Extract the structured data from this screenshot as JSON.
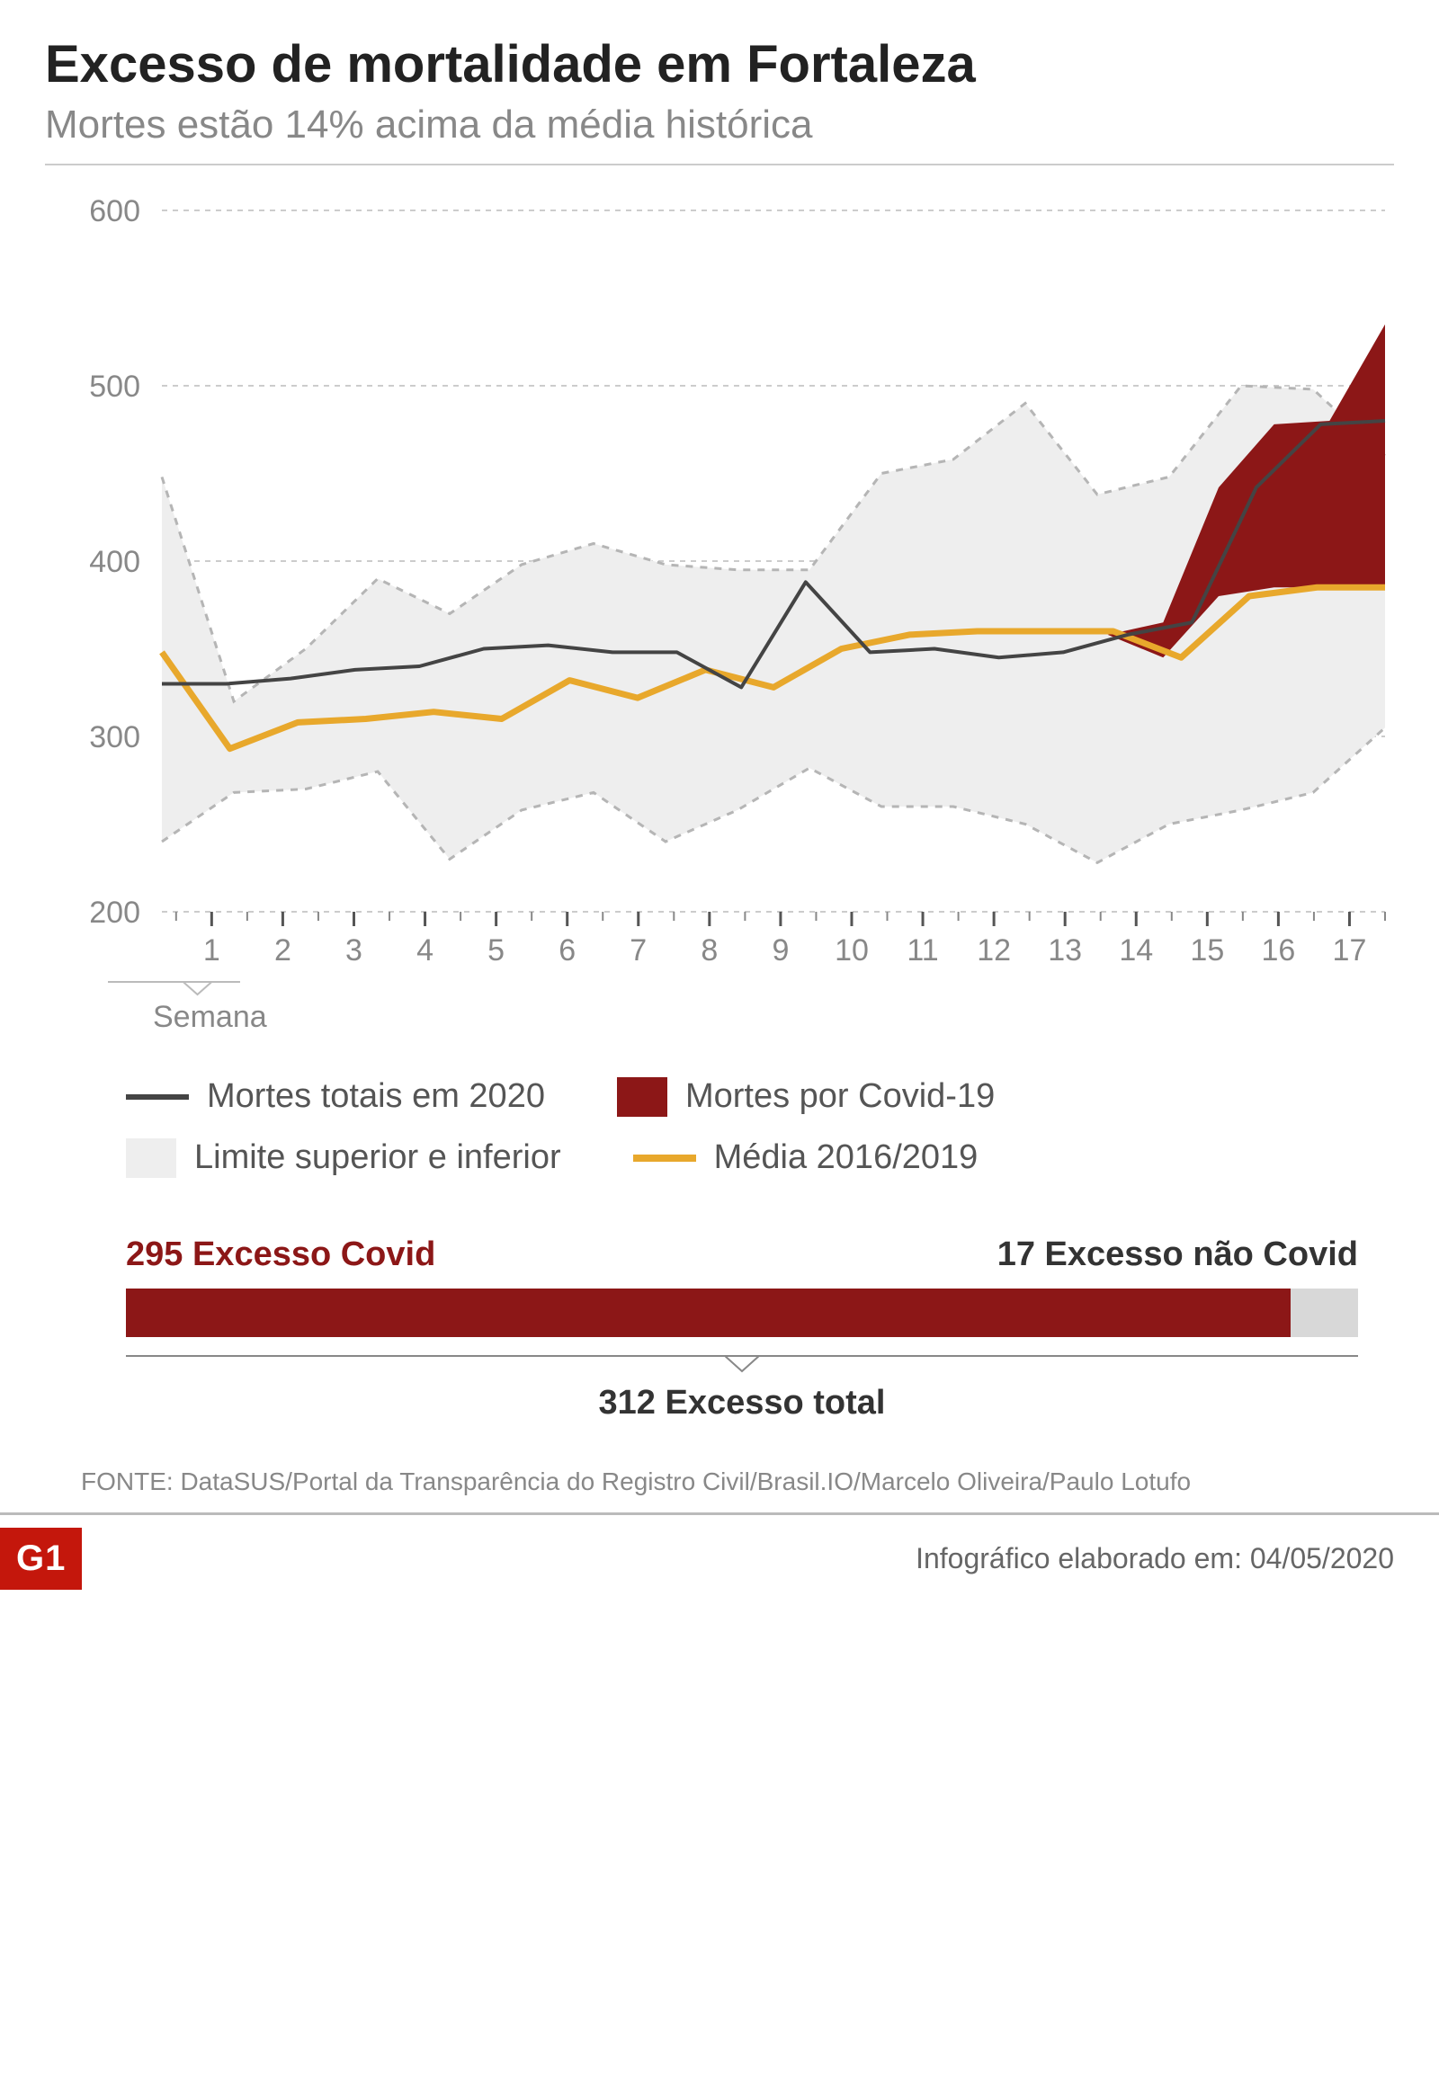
{
  "title": "Excesso de mortalidade em Fortaleza",
  "subtitle": "Mortes estão 14% acima da média histórica",
  "chart": {
    "type": "line-area",
    "background_color": "#ffffff",
    "grid_color": "#cccccc",
    "grid_dash": "6,6",
    "ylim": [
      200,
      600
    ],
    "ytick_step": 100,
    "yticks": [
      200,
      300,
      400,
      500,
      600
    ],
    "xticks": [
      1,
      2,
      3,
      4,
      5,
      6,
      7,
      8,
      9,
      10,
      11,
      12,
      13,
      14,
      15,
      16,
      17
    ],
    "x_label": "Semana",
    "tick_fontsize": 34,
    "tick_color": "#888888",
    "x_range": [
      0.3,
      17.5
    ],
    "series": {
      "upper": {
        "data": [
          448,
          320,
          350,
          390,
          370,
          398,
          410,
          398,
          395,
          395,
          450,
          458,
          490,
          438,
          448,
          500,
          498,
          460
        ],
        "color": "#b5b5b5",
        "dash": "8,8",
        "width": 3,
        "fill_to": "lower",
        "fill_color": "#eeeeee"
      },
      "lower": {
        "data": [
          240,
          268,
          270,
          280,
          230,
          258,
          268,
          240,
          258,
          282,
          260,
          260,
          250,
          228,
          250,
          258,
          268,
          305
        ],
        "color": "#b5b5b5",
        "dash": "8,8",
        "width": 3
      },
      "media": {
        "data": [
          348,
          293,
          308,
          310,
          314,
          310,
          332,
          322,
          338,
          328,
          350,
          358,
          360,
          360,
          360,
          345,
          380,
          385,
          385
        ],
        "color": "#e8a82c",
        "width": 7
      },
      "total2020": {
        "data": [
          330,
          330,
          333,
          338,
          340,
          350,
          352,
          348,
          348,
          328,
          388,
          348,
          350,
          345,
          348,
          358,
          365,
          442,
          478,
          480
        ],
        "color": "#444444",
        "width": 4
      },
      "covid_area": {
        "start_x": 13.6,
        "top": [
          358,
          365,
          442,
          478,
          480,
          535
        ],
        "bottom": [
          358,
          345,
          380,
          385,
          385,
          385
        ],
        "fill_color": "#8c1717"
      }
    }
  },
  "legend": {
    "items": [
      {
        "key": "total2020",
        "label": "Mortes totais em 2020",
        "type": "line",
        "color": "#444444"
      },
      {
        "key": "covid",
        "label": "Mortes por Covid-19",
        "type": "box",
        "color": "#8c1717"
      },
      {
        "key": "limits",
        "label": "Limite superior e inferior",
        "type": "box",
        "color": "#eeeeee"
      },
      {
        "key": "media",
        "label": "Média 2016/2019",
        "type": "line",
        "color": "#e8a82c"
      }
    ]
  },
  "excess": {
    "covid": {
      "value": 295,
      "label": "295 Excesso Covid",
      "color": "#8c1717"
    },
    "noncovid": {
      "value": 17,
      "label": "17 Excesso não Covid",
      "color": "#d8d8d8"
    },
    "total": {
      "value": 312,
      "label": "312 Excesso total"
    }
  },
  "source": "FONTE: DataSUS/Portal da Transparência do Registro Civil/Brasil.IO/Marcelo Oliveira/Paulo Lotufo",
  "footer": {
    "logo": "G1",
    "logo_bg": "#c4170c",
    "date_label": "Infográfico elaborado em: 04/05/2020"
  }
}
